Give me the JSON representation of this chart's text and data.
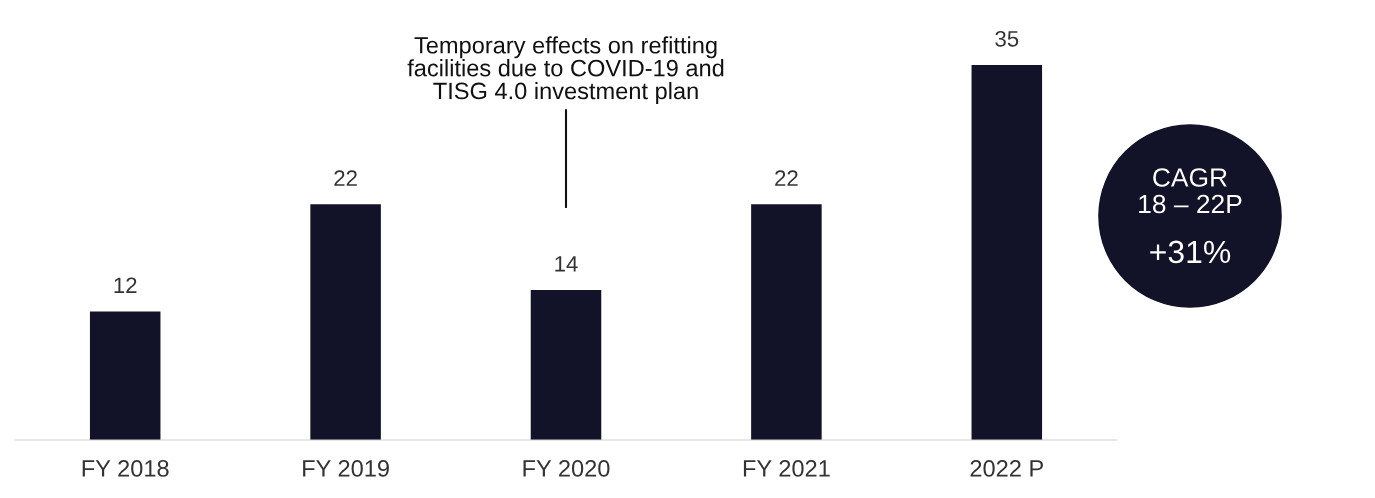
{
  "chart_data": {
    "type": "bar",
    "categories": [
      "FY 2018",
      "FY 2019",
      "FY 2020",
      "FY 2021",
      "2022 P"
    ],
    "values": [
      12,
      22,
      14,
      22,
      35
    ],
    "color": "#121228",
    "tick_labels": "x",
    "data_labels": true,
    "grid": false,
    "legend": false,
    "annotations": [
      "Temporary effects on refitting\nfacilities due to COVID-19 and\nTISG 4.0 investment plan",
      "CAGR\n18 – 22P",
      "+31%"
    ]
  }
}
